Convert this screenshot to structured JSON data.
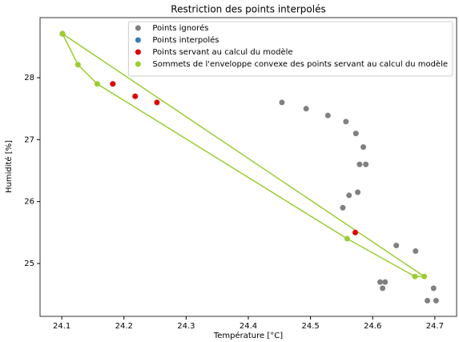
{
  "chart_data": {
    "type": "scatter",
    "title": "Restriction des points interpolés",
    "x_label": "Température [°C]",
    "y_label": "Humidité [%]",
    "xlim": [
      24.065,
      24.735
    ],
    "ylim": [
      24.146,
      28.97
    ],
    "xticks": [
      24.1,
      24.2,
      24.3,
      24.4,
      24.5,
      24.6,
      24.7
    ],
    "yticks": [
      25,
      26,
      27,
      28
    ],
    "grid": false,
    "legend": "upper right",
    "series": [
      {
        "name": "Points ignorés",
        "color": "#808080",
        "x": [
          24.454,
          24.493,
          24.528,
          24.557,
          24.573,
          24.585,
          24.579,
          24.589,
          24.562,
          24.576,
          24.552,
          24.638,
          24.669,
          24.612,
          24.62,
          24.616,
          24.698,
          24.688,
          24.702
        ],
        "y": [
          27.6,
          27.5,
          27.39,
          27.29,
          27.1,
          26.88,
          26.6,
          26.6,
          26.1,
          26.15,
          25.9,
          25.29,
          25.2,
          24.7,
          24.7,
          24.6,
          24.6,
          24.4,
          24.4
        ]
      },
      {
        "name": "Points interpolés",
        "color": "#3a7ab3",
        "x": [],
        "y": []
      },
      {
        "name": "Points servant au calcul du modèle",
        "color": "#e00000",
        "x": [
          24.101,
          24.182,
          24.218,
          24.253,
          24.572
        ],
        "y": [
          28.71,
          27.9,
          27.7,
          27.6,
          25.5
        ]
      },
      {
        "name": "Sommets de l'enveloppe convexe des points servant au calcul du modèle",
        "color": "#9acd32",
        "line": "closed",
        "x": [
          24.101,
          24.126,
          24.157,
          24.559,
          24.668,
          24.683
        ],
        "y": [
          28.71,
          28.21,
          27.9,
          25.4,
          24.79,
          24.79
        ]
      }
    ]
  }
}
